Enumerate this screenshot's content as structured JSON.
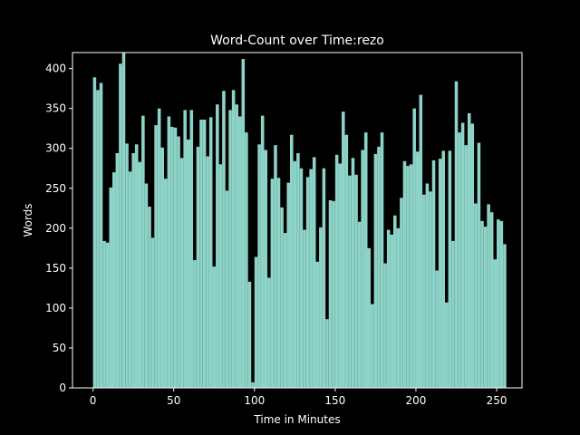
{
  "chart_data": {
    "type": "bar",
    "title": "Word-Count over Time:rezo",
    "xlabel": "Time in Minutes",
    "ylabel": "Words",
    "xlim": [
      -12.7,
      265.7
    ],
    "ylim": [
      0,
      420
    ],
    "xticks": [
      0,
      50,
      100,
      150,
      200,
      250
    ],
    "yticks": [
      0,
      50,
      100,
      150,
      200,
      250,
      300,
      350,
      400
    ],
    "bin_width": 2,
    "x_start": 0,
    "grid": false,
    "colors": {
      "background": "#000000",
      "bar": "#8dd3c7",
      "axis": "#ffffff",
      "text": "#ffffff"
    },
    "values": [
      389,
      373,
      382,
      184,
      182,
      251,
      270,
      294,
      406,
      420,
      306,
      271,
      294,
      305,
      283,
      341,
      256,
      227,
      188,
      329,
      350,
      301,
      262,
      340,
      327,
      326,
      315,
      288,
      348,
      311,
      348,
      160,
      302,
      336,
      336,
      290,
      339,
      152,
      355,
      280,
      372,
      247,
      348,
      373,
      355,
      340,
      412,
      320,
      133,
      7,
      164,
      305,
      341,
      298,
      138,
      262,
      304,
      263,
      226,
      194,
      257,
      317,
      284,
      294,
      275,
      198,
      264,
      274,
      289,
      158,
      201,
      275,
      86,
      235,
      234,
      292,
      281,
      346,
      317,
      266,
      288,
      267,
      208,
      298,
      320,
      175,
      105,
      293,
      302,
      320,
      156,
      198,
      192,
      216,
      200,
      238,
      284,
      278,
      280,
      350,
      296,
      367,
      242,
      256,
      246,
      285,
      147,
      287,
      297,
      107,
      297,
      184,
      384,
      320,
      332,
      304,
      344,
      331,
      231,
      307,
      209,
      202,
      230,
      220,
      161,
      211,
      209,
      180
    ]
  }
}
